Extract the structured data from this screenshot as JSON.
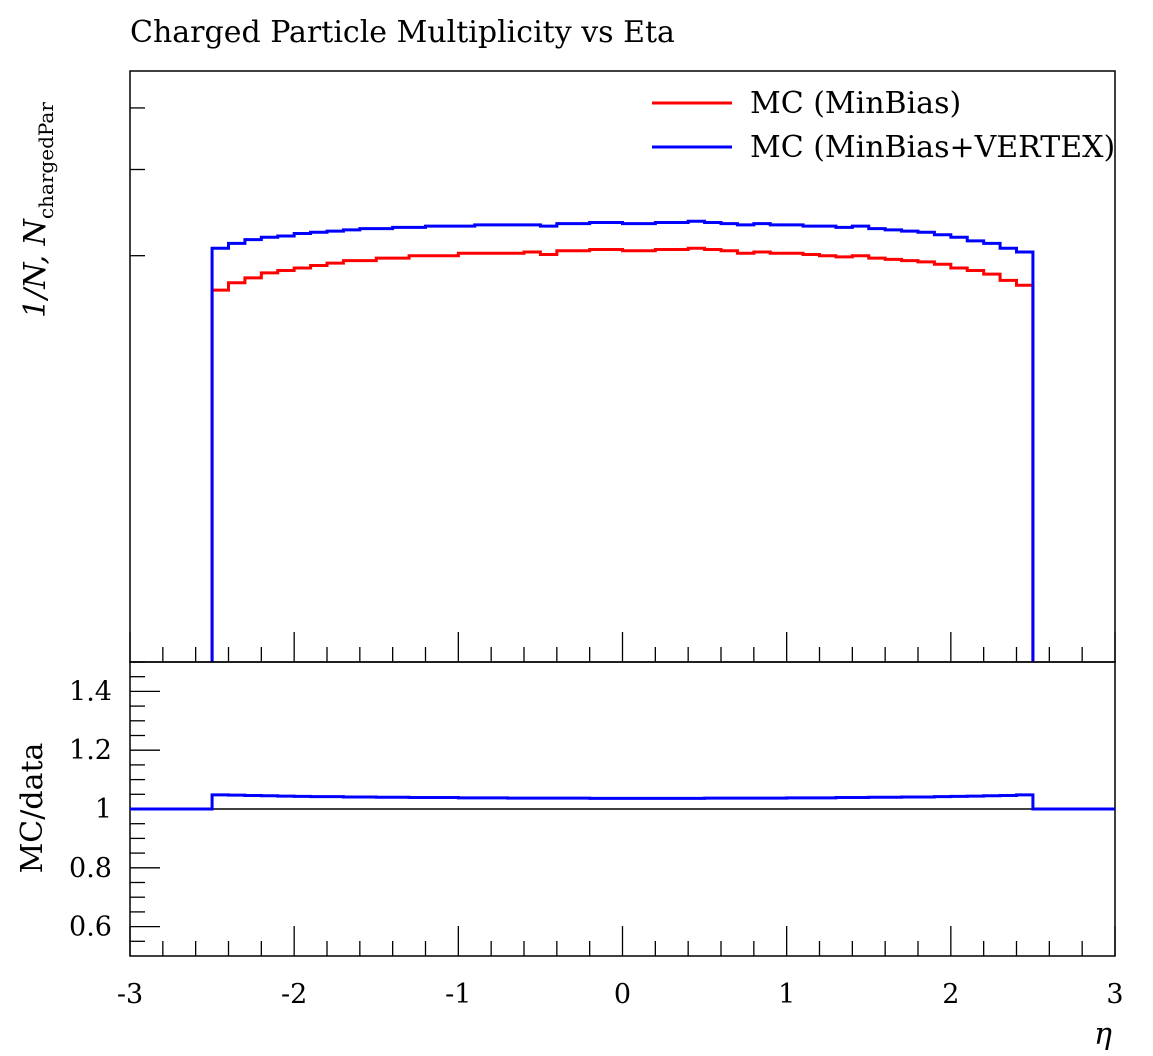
{
  "chart_data": [
    {
      "panel": "main",
      "type": "line",
      "title": "Charged Particle Multiplicity vs Eta",
      "ylabel_main": "1/N, N",
      "ylabel_sub": "chargedPar",
      "xlim": [
        -3,
        3
      ],
      "y_scale": "unlabeled",
      "legend_position": "top-right",
      "bin_edges": [
        -2.5,
        -2.4,
        -2.3,
        -2.2,
        -2.1,
        -2.0,
        -1.9,
        -1.8,
        -1.7,
        -1.6,
        -1.5,
        -1.4,
        -1.3,
        -1.2,
        -1.1,
        -1.0,
        -0.9,
        -0.8,
        -0.7,
        -0.6,
        -0.5,
        -0.4,
        -0.3,
        -0.2,
        -0.1,
        0.0,
        0.1,
        0.2,
        0.3,
        0.4,
        0.5,
        0.6,
        0.7,
        0.8,
        0.9,
        1.0,
        1.1,
        1.2,
        1.3,
        1.4,
        1.5,
        1.6,
        1.7,
        1.8,
        1.9,
        2.0,
        2.1,
        2.2,
        2.3,
        2.4,
        2.5
      ],
      "series": [
        {
          "name": "MC (MinBias)",
          "color": "#ff0000",
          "values": [
            0.652,
            0.658,
            0.662,
            0.666,
            0.668,
            0.67,
            0.672,
            0.674,
            0.676,
            0.676,
            0.678,
            0.678,
            0.68,
            0.68,
            0.68,
            0.682,
            0.682,
            0.682,
            0.682,
            0.683,
            0.681,
            0.684,
            0.684,
            0.685,
            0.685,
            0.684,
            0.684,
            0.685,
            0.685,
            0.686,
            0.685,
            0.684,
            0.682,
            0.683,
            0.682,
            0.682,
            0.681,
            0.68,
            0.679,
            0.68,
            0.678,
            0.677,
            0.676,
            0.675,
            0.673,
            0.67,
            0.668,
            0.665,
            0.66,
            0.656
          ]
        },
        {
          "name": "MC (MinBias+VERTEX)",
          "color": "#0000ff",
          "values": [
            0.686,
            0.69,
            0.693,
            0.695,
            0.696,
            0.698,
            0.699,
            0.7,
            0.701,
            0.702,
            0.702,
            0.703,
            0.703,
            0.704,
            0.704,
            0.704,
            0.705,
            0.705,
            0.705,
            0.705,
            0.704,
            0.706,
            0.706,
            0.707,
            0.707,
            0.706,
            0.706,
            0.707,
            0.707,
            0.708,
            0.707,
            0.706,
            0.705,
            0.706,
            0.705,
            0.705,
            0.704,
            0.704,
            0.703,
            0.704,
            0.702,
            0.701,
            0.7,
            0.699,
            0.697,
            0.695,
            0.692,
            0.69,
            0.686,
            0.683
          ]
        }
      ]
    },
    {
      "panel": "ratio",
      "type": "line",
      "ylabel": "MC/data",
      "xlabel": "η",
      "xlim": [
        -3,
        3
      ],
      "ylim": [
        0.5,
        1.5
      ],
      "x_ticks": [
        "-3",
        "-2",
        "-1",
        "0",
        "1",
        "2",
        "3"
      ],
      "y_ticks": [
        "0.6",
        "0.8",
        "1",
        "1.2",
        "1.4"
      ],
      "reference_line": 1.0,
      "series": [
        {
          "name": "MC (MinBias+VERTEX)",
          "color": "#0000ff",
          "outside_value": 1.0,
          "values": [
            1.048,
            1.047,
            1.046,
            1.045,
            1.044,
            1.043,
            1.042,
            1.042,
            1.041,
            1.041,
            1.04,
            1.04,
            1.039,
            1.039,
            1.039,
            1.038,
            1.038,
            1.038,
            1.037,
            1.037,
            1.037,
            1.037,
            1.037,
            1.036,
            1.036,
            1.036,
            1.036,
            1.036,
            1.036,
            1.036,
            1.037,
            1.037,
            1.037,
            1.037,
            1.037,
            1.038,
            1.038,
            1.038,
            1.039,
            1.039,
            1.04,
            1.04,
            1.041,
            1.041,
            1.042,
            1.043,
            1.044,
            1.045,
            1.046,
            1.048
          ]
        }
      ]
    }
  ]
}
